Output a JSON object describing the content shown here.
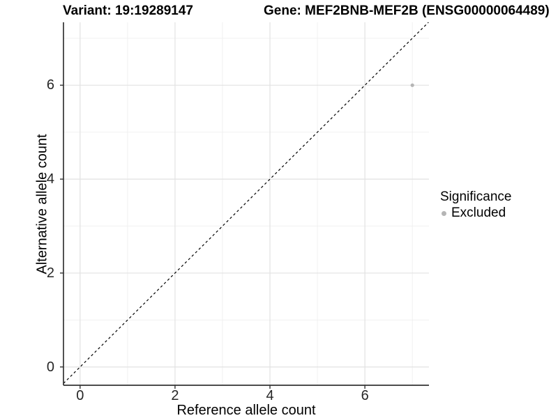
{
  "titles": {
    "variant": "Variant: 19:19289147",
    "gene": "Gene: MEF2BNB-MEF2B (ENSG00000064489)"
  },
  "chart_data": {
    "type": "scatter",
    "title_left": "Variant: 19:19289147",
    "title_right": "Gene: MEF2BNB-MEF2B (ENSG00000064489)",
    "xlabel": "Reference allele count",
    "ylabel": "Alternative allele count",
    "xlim": [
      -0.35,
      7.35
    ],
    "ylim": [
      -0.39,
      7.34
    ],
    "x_major_ticks": [
      0,
      2,
      4,
      6
    ],
    "y_major_ticks": [
      0,
      2,
      4,
      6
    ],
    "x_minor_ticks": [
      1,
      3,
      5,
      7
    ],
    "y_minor_ticks": [
      1,
      3,
      5,
      7
    ],
    "grid": true,
    "reference_line": {
      "type": "identity",
      "slope": 1,
      "intercept": 0,
      "style": "dashed",
      "color": "#000000"
    },
    "series": [
      {
        "name": "Excluded",
        "color": "#b5b5b5",
        "points": [
          {
            "x": 7,
            "y": 6
          }
        ]
      }
    ],
    "legend": {
      "title": "Significance",
      "position": "right",
      "items": [
        {
          "label": "Excluded",
          "color": "#b5b5b5"
        }
      ]
    },
    "colors": {
      "grid_major": "#e2e2e2",
      "grid_minor": "#efefef",
      "axis_line": "#333333",
      "tick_mark": "#333333",
      "tick_label": "#262626",
      "background": "#ffffff"
    }
  }
}
